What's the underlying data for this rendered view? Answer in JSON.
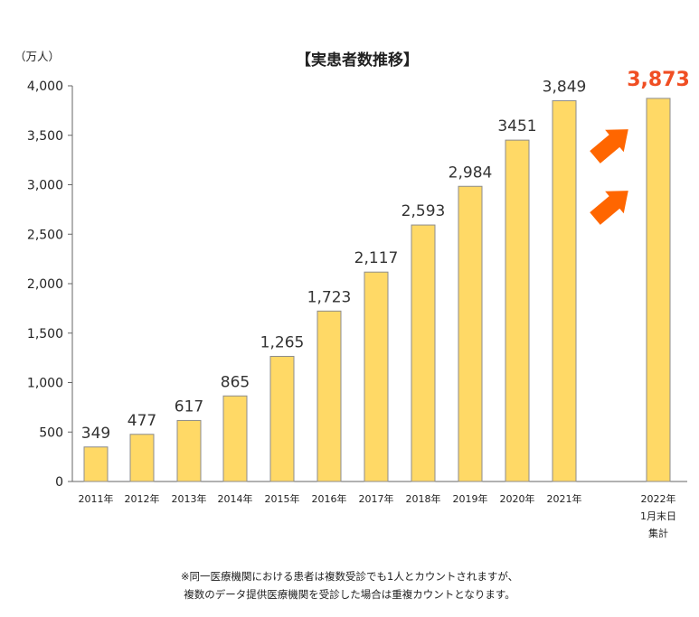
{
  "chart_data": {
    "type": "bar",
    "title": "【実患者数推移】",
    "ylabel": "（万人）",
    "ylim": [
      0,
      4000
    ],
    "yticks": [
      "0",
      "500",
      "1,000",
      "1,500",
      "2,000",
      "2,500",
      "3,000",
      "3,500",
      "4,000"
    ],
    "categories": [
      [
        "2011年"
      ],
      [
        "2012年"
      ],
      [
        "2013年"
      ],
      [
        "2014年"
      ],
      [
        "2015年"
      ],
      [
        "2016年"
      ],
      [
        "2017年"
      ],
      [
        "2018年"
      ],
      [
        "2019年"
      ],
      [
        "2020年"
      ],
      [
        "2021年"
      ],
      [
        "2022年",
        "1月末日",
        "集計"
      ]
    ],
    "values": [
      349,
      477,
      617,
      865,
      1265,
      1723,
      2117,
      2593,
      2984,
      3451,
      3849,
      3873
    ],
    "value_labels": [
      "349",
      "477",
      "617",
      "865",
      "1,265",
      "1,723",
      "2,117",
      "2,593",
      "2,984",
      "3451",
      "3,849",
      "3,873"
    ],
    "highlight_index": 11,
    "bar_color": "#FFD966",
    "bar_border_color": "#8C8C8C",
    "highlight_label_color": "#F04E23",
    "arrow_color": "#FF6600",
    "grid": false
  },
  "footnote": {
    "line1": "※同一医療機関における患者は複数受診でも1人とカウントされますが、",
    "line2": "複数のデータ提供医療機関を受診した場合は重複カウントとなります。"
  }
}
